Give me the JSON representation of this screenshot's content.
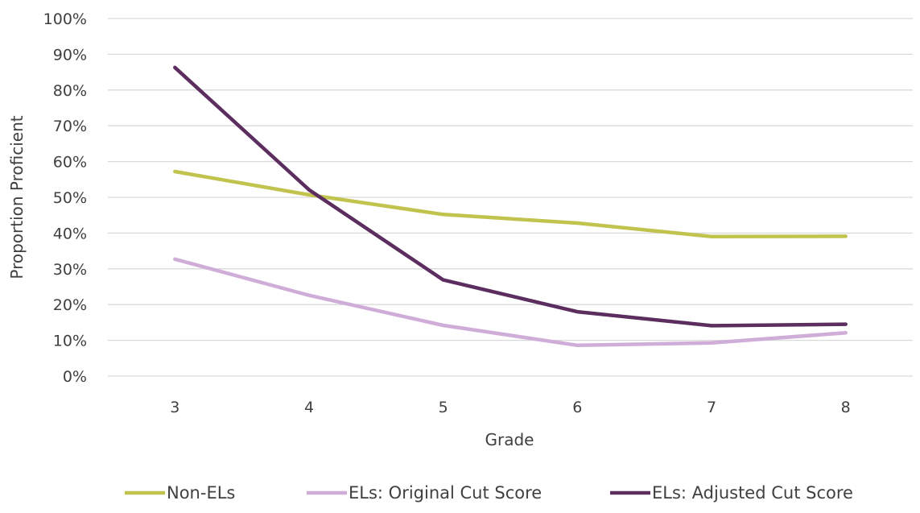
{
  "chart_data": {
    "type": "line",
    "title": "",
    "xlabel": "Grade",
    "ylabel": "Proportion Proficient",
    "categories": [
      "3",
      "4",
      "5",
      "6",
      "7",
      "8"
    ],
    "ylim": [
      0,
      100
    ],
    "y_ticks": [
      "0%",
      "10%",
      "20%",
      "30%",
      "40%",
      "50%",
      "60%",
      "70%",
      "80%",
      "90%",
      "100%"
    ],
    "grid": "horizontal",
    "legend_position": "bottom",
    "series": [
      {
        "name": "Non-ELs",
        "color": "#c2c24f",
        "values": [
          57.2,
          50.7,
          45.2,
          42.8,
          39.0,
          39.1
        ]
      },
      {
        "name": "ELs: Original Cut Score",
        "color": "#cfadd8",
        "values": [
          32.7,
          22.6,
          14.2,
          8.6,
          9.3,
          12.1
        ]
      },
      {
        "name": "ELs: Adjusted Cut Score",
        "color": "#5c2d5f",
        "values": [
          86.3,
          52.1,
          26.9,
          18.0,
          14.1,
          14.5
        ]
      }
    ]
  }
}
